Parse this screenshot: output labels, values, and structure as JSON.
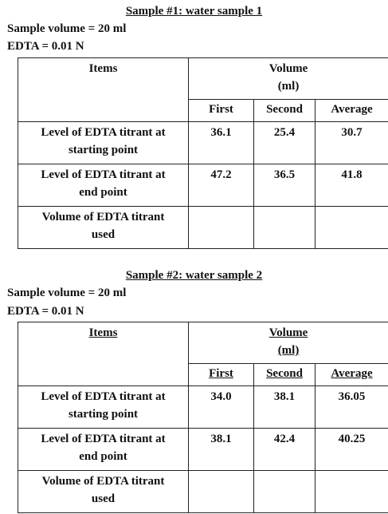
{
  "samples": [
    {
      "title": "Sample #1: water sample 1",
      "sample_volume": "Sample volume = 20 ml",
      "edta": "EDTA = 0.01 N",
      "header": {
        "items": "Items",
        "volume_line1": "Volume",
        "volume_line2": "(ml)",
        "first": "First",
        "second": "Second",
        "average": "Average"
      },
      "rows": [
        {
          "label_line1": "Level of EDTA titrant at",
          "label_line2": "starting point",
          "first": "36.1",
          "second": "25.4",
          "average": "30.7"
        },
        {
          "label_line1": "Level of EDTA titrant at",
          "label_line2": "end point",
          "first": "47.2",
          "second": "36.5",
          "average": "41.8"
        },
        {
          "label_line1": "Volume of EDTA titrant",
          "label_line2": "used",
          "first": "",
          "second": "",
          "average": ""
        }
      ]
    },
    {
      "title": "Sample #2: water sample 2",
      "sample_volume": "Sample volume = 20 ml",
      "edta": "EDTA = 0.01 N",
      "header": {
        "items": "Items",
        "volume_line1": "Volume",
        "volume_line2": "(ml)",
        "first": "First",
        "second": "Second",
        "average": "Average"
      },
      "rows": [
        {
          "label_line1": "Level of EDTA titrant at",
          "label_line2": "starting point",
          "first": "34.0",
          "second": "38.1",
          "average": "36.05"
        },
        {
          "label_line1": "Level of EDTA titrant at",
          "label_line2": "end point",
          "first": "38.1",
          "second": "42.4",
          "average": "40.25"
        },
        {
          "label_line1": "Volume of EDTA titrant",
          "label_line2": "used",
          "first": "",
          "second": "",
          "average": ""
        }
      ]
    }
  ]
}
